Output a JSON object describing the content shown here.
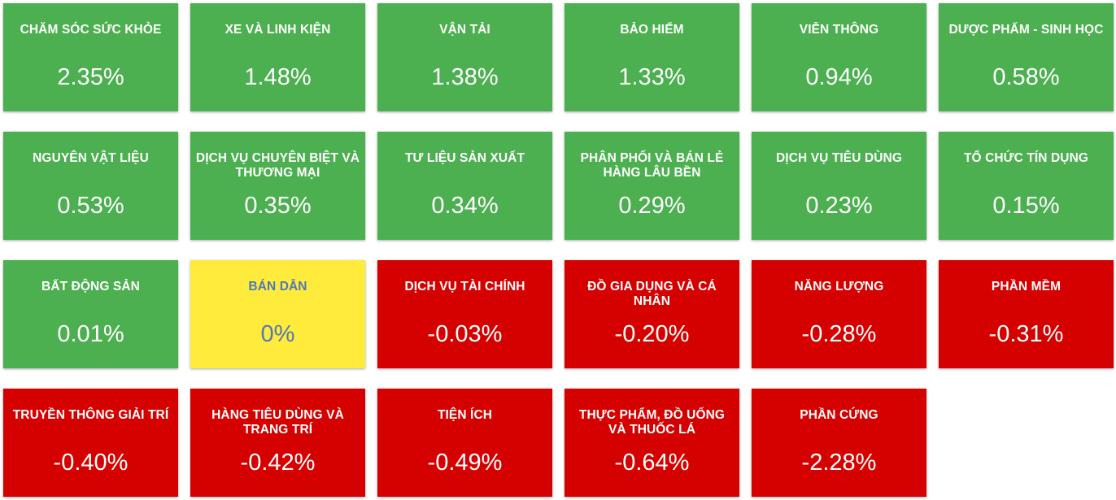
{
  "colors": {
    "up": "#4caf50",
    "down": "#d50000",
    "flat": "#ffeb3b",
    "flat_text": "#4f79b8",
    "text": "#ffffff"
  },
  "sectors": [
    {
      "name": "CHĂM SÓC SỨC KHỎE",
      "change": "2.35%",
      "status": "up"
    },
    {
      "name": "XE VÀ LINH KIỆN",
      "change": "1.48%",
      "status": "up"
    },
    {
      "name": "VẬN TẢI",
      "change": "1.38%",
      "status": "up"
    },
    {
      "name": "BẢO HIỂM",
      "change": "1.33%",
      "status": "up"
    },
    {
      "name": "VIỄN THÔNG",
      "change": "0.94%",
      "status": "up"
    },
    {
      "name": "DƯỢC PHẨM - SINH HỌC",
      "change": "0.58%",
      "status": "up"
    },
    {
      "name": "NGUYÊN VẬT LIỆU",
      "change": "0.53%",
      "status": "up"
    },
    {
      "name": "DỊCH VỤ CHUYÊN BIỆT VÀ THƯƠNG MẠI",
      "change": "0.35%",
      "status": "up"
    },
    {
      "name": "TƯ LIỆU SẢN XUẤT",
      "change": "0.34%",
      "status": "up"
    },
    {
      "name": "PHÂN PHỐI VÀ BÁN LẺ HÀNG LÂU BỀN",
      "change": "0.29%",
      "status": "up"
    },
    {
      "name": "DỊCH VỤ TIÊU DÙNG",
      "change": "0.23%",
      "status": "up"
    },
    {
      "name": "TỔ CHỨC TÍN DỤNG",
      "change": "0.15%",
      "status": "up"
    },
    {
      "name": "BẤT ĐỘNG SẢN",
      "change": "0.01%",
      "status": "up"
    },
    {
      "name": "BÁN DẪN",
      "change": "0%",
      "status": "flat"
    },
    {
      "name": "DỊCH VỤ TÀI CHÍNH",
      "change": "-0.03%",
      "status": "down"
    },
    {
      "name": "ĐỒ GIA DỤNG VÀ CÁ NHÂN",
      "change": "-0.20%",
      "status": "down"
    },
    {
      "name": "NĂNG LƯỢNG",
      "change": "-0.28%",
      "status": "down"
    },
    {
      "name": "PHẦN MỀM",
      "change": "-0.31%",
      "status": "down"
    },
    {
      "name": "TRUYỀN THÔNG GIẢI TRÍ",
      "change": "-0.40%",
      "status": "down"
    },
    {
      "name": "HÀNG TIÊU DÙNG VÀ TRANG TRÍ",
      "change": "-0.42%",
      "status": "down"
    },
    {
      "name": "TIỆN ÍCH",
      "change": "-0.49%",
      "status": "down"
    },
    {
      "name": "THỰC PHẨM, ĐỒ UỐNG VÀ THUỐC LÁ",
      "change": "-0.64%",
      "status": "down"
    },
    {
      "name": "PHẦN CỨNG",
      "change": "-2.28%",
      "status": "down"
    }
  ]
}
